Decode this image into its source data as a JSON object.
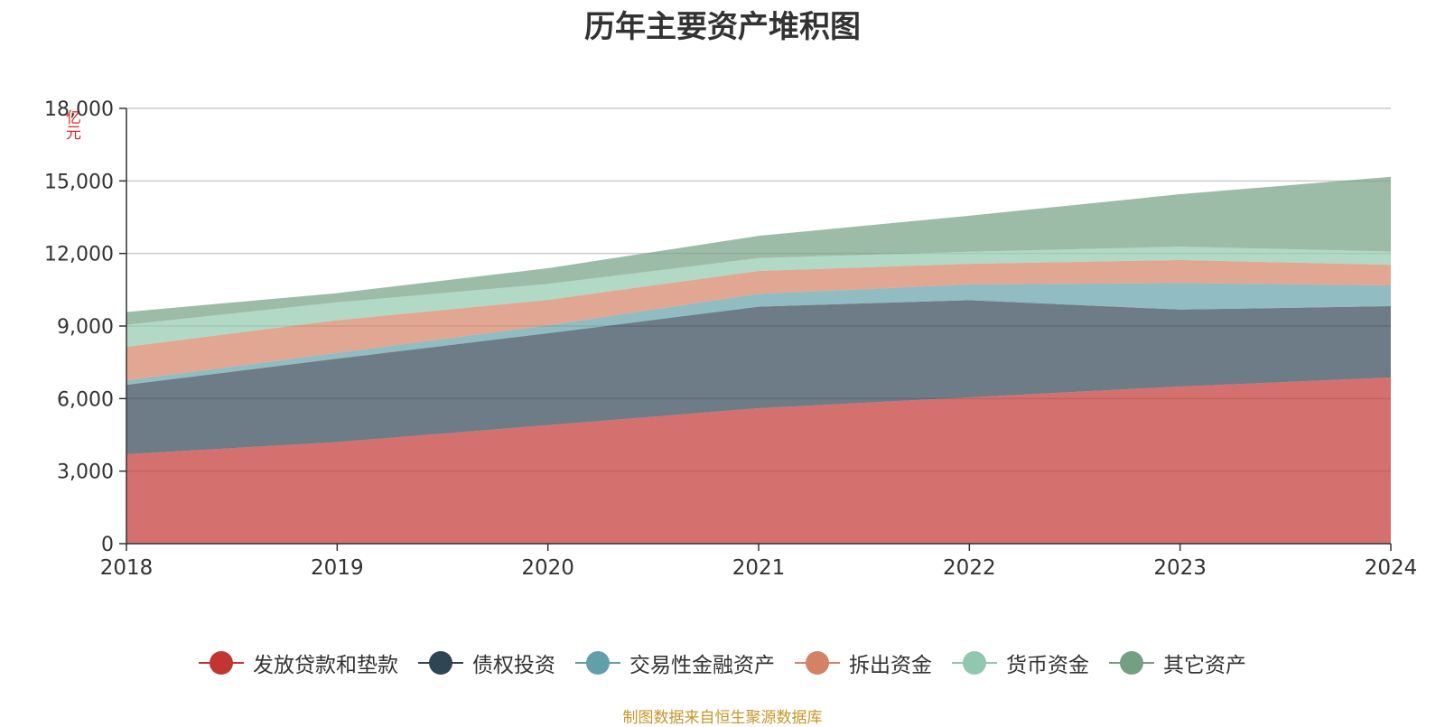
{
  "chart_data": {
    "type": "area",
    "stacked": true,
    "title": "历年主要资产堆积图",
    "unit_label": "亿元",
    "x": [
      "2018",
      "2019",
      "2020",
      "2021",
      "2022",
      "2023",
      "2024"
    ],
    "ylim": [
      0,
      18000
    ],
    "yticks": [
      0,
      3000,
      6000,
      9000,
      12000,
      15000,
      18000
    ],
    "ytick_labels": [
      "0",
      "3,000",
      "6,000",
      "9,000",
      "12,000",
      "15,000",
      "18,000"
    ],
    "grid": true,
    "legend_position": "bottom",
    "series": [
      {
        "name": "发放贷款和垫款",
        "color": "#c23531",
        "values": [
          3700,
          4200,
          4900,
          5600,
          6050,
          6500,
          6870
        ]
      },
      {
        "name": "债权投资",
        "color": "#2f4554",
        "values": [
          2870,
          3450,
          3800,
          4200,
          4020,
          3180,
          2950
        ]
      },
      {
        "name": "交易性金融资产",
        "color": "#61a0a8",
        "values": [
          180,
          240,
          330,
          530,
          650,
          1100,
          860
        ]
      },
      {
        "name": "拆出资金",
        "color": "#d48265",
        "values": [
          1390,
          1350,
          1050,
          950,
          850,
          950,
          850
        ]
      },
      {
        "name": "货币资金",
        "color": "#91c7ae",
        "values": [
          910,
          740,
          660,
          530,
          500,
          550,
          550
        ]
      },
      {
        "name": "其它资产",
        "color": "#749f83",
        "values": [
          530,
          380,
          650,
          920,
          1490,
          2170,
          3090
        ]
      }
    ]
  },
  "source_note": "制图数据来自恒生聚源数据库"
}
